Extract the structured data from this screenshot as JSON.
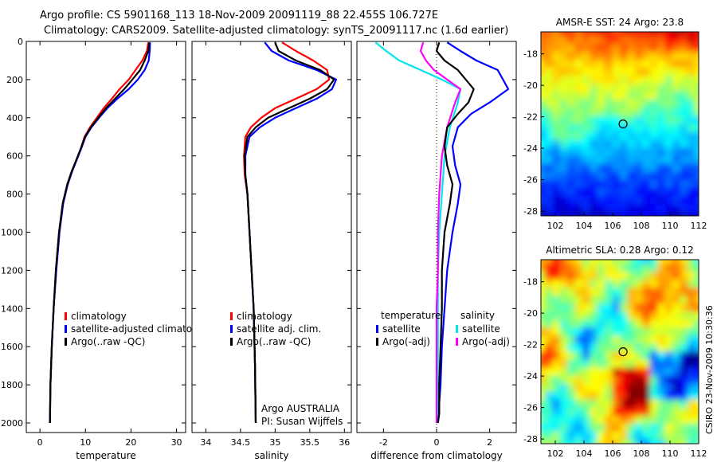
{
  "header": {
    "line1": "Argo profile: CS 5901168_113 18-Nov-2009 20091119_88 22.455S 106.727E",
    "line2": "Climatology: CARS2009. Satellite-adjusted climatology: synTS_20091117.nc (1.6d earlier)"
  },
  "footer": {
    "right_vertical": "CSIRO 23-Nov-2009 10:30:36",
    "argo_credit": "Argo AUSTRALIA",
    "pi_credit": "PI: Susan Wijffels"
  },
  "colors": {
    "climatology": "#ff0000",
    "satellite": "#0000ff",
    "argo": "#000000",
    "sal_satellite": "#00e5ee",
    "sal_argo": "#ff00ff"
  },
  "chart_data": [
    {
      "type": "line",
      "title": "",
      "xlabel": "temperature",
      "ylabel": "",
      "xlim": [
        -3,
        32
      ],
      "ylim": [
        2050,
        0
      ],
      "y_inverted": true,
      "xticks": [
        0,
        10,
        20,
        30
      ],
      "yticks": [
        0,
        200,
        400,
        600,
        800,
        1000,
        1200,
        1400,
        1600,
        1800,
        2000
      ],
      "legend": [
        "climatology",
        "satellite-adjusted climatolo",
        "Argo(..raw -QC)"
      ],
      "legend_position": "lower-middle",
      "series": [
        {
          "name": "climatology",
          "color": "red",
          "x": [
            23.8,
            23.5,
            22.5,
            21.0,
            19.5,
            17.5,
            15.8,
            14.0,
            12.5,
            11.0,
            9.8,
            9.0,
            8.0,
            7.0,
            6.0,
            5.0,
            4.2,
            3.5,
            3.0,
            2.6,
            2.3,
            2.2
          ],
          "y": [
            5,
            50,
            100,
            150,
            200,
            250,
            300,
            350,
            400,
            450,
            500,
            560,
            620,
            680,
            750,
            850,
            1000,
            1200,
            1400,
            1600,
            1800,
            2000
          ]
        },
        {
          "name": "satellite-adjusted climatolo",
          "color": "blue",
          "x": [
            24.2,
            24.1,
            23.9,
            23.0,
            21.5,
            19.5,
            17.0,
            14.8,
            13.0,
            11.3,
            10.0,
            9.1,
            8.1,
            7.1,
            6.1,
            5.1,
            4.3,
            3.6,
            3.0,
            2.6,
            2.3,
            2.2
          ],
          "y": [
            5,
            50,
            100,
            150,
            200,
            250,
            300,
            350,
            400,
            450,
            500,
            560,
            620,
            680,
            750,
            850,
            1000,
            1200,
            1400,
            1600,
            1800,
            2000
          ]
        },
        {
          "name": "Argo(..raw -QC)",
          "color": "black",
          "x": [
            24.0,
            23.8,
            23.0,
            22.0,
            20.3,
            18.5,
            16.5,
            14.5,
            12.8,
            11.2,
            9.9,
            9.0,
            8.0,
            7.0,
            6.0,
            5.0,
            4.2,
            3.5,
            3.0,
            2.6,
            2.3,
            2.2
          ],
          "y": [
            5,
            50,
            100,
            150,
            200,
            250,
            300,
            350,
            400,
            450,
            500,
            560,
            620,
            680,
            750,
            850,
            1000,
            1200,
            1400,
            1600,
            1800,
            2000
          ]
        }
      ]
    },
    {
      "type": "line",
      "title": "",
      "xlabel": "salinity",
      "ylabel": "",
      "xlim": [
        33.8,
        36.1
      ],
      "ylim": [
        2050,
        0
      ],
      "y_inverted": true,
      "xticks": [
        34,
        34.5,
        35,
        35.5,
        36
      ],
      "legend": [
        "climatology",
        "satellite adj. clim.",
        "Argo(..raw -QC)"
      ],
      "legend_position": "lower-middle",
      "series": [
        {
          "name": "climatology",
          "color": "red",
          "x": [
            35.1,
            35.3,
            35.55,
            35.75,
            35.78,
            35.6,
            35.3,
            35.0,
            34.8,
            34.65,
            34.57,
            34.55,
            34.56,
            34.6,
            34.63,
            34.66,
            34.69,
            34.71,
            34.72
          ],
          "y": [
            5,
            50,
            100,
            150,
            200,
            250,
            300,
            350,
            400,
            450,
            500,
            600,
            700,
            800,
            1000,
            1200,
            1400,
            1700,
            2000
          ]
        },
        {
          "name": "satellite adj. clim.",
          "color": "blue",
          "x": [
            34.85,
            34.95,
            35.2,
            35.6,
            35.88,
            35.82,
            35.6,
            35.3,
            35.0,
            34.78,
            34.63,
            34.57,
            34.57,
            34.6,
            34.63,
            34.66,
            34.69,
            34.71,
            34.72
          ],
          "y": [
            5,
            50,
            100,
            150,
            200,
            250,
            300,
            350,
            400,
            450,
            500,
            600,
            700,
            800,
            1000,
            1200,
            1400,
            1700,
            2000
          ]
        },
        {
          "name": "Argo(..raw -QC)",
          "color": "black",
          "x": [
            35.0,
            35.05,
            35.3,
            35.65,
            35.85,
            35.75,
            35.5,
            35.2,
            34.9,
            34.72,
            34.6,
            34.56,
            34.57,
            34.6,
            34.63,
            34.66,
            34.69,
            34.71,
            34.72
          ],
          "y": [
            5,
            50,
            100,
            150,
            200,
            250,
            300,
            350,
            400,
            450,
            500,
            600,
            700,
            800,
            1000,
            1200,
            1400,
            1700,
            2000
          ]
        }
      ]
    },
    {
      "type": "line",
      "title": "",
      "xlabel": "difference from climatology",
      "ylabel": "",
      "xlim": [
        -3,
        3
      ],
      "ylim": [
        2050,
        0
      ],
      "y_inverted": true,
      "xticks": [
        -2,
        0,
        2
      ],
      "legend_groups": [
        {
          "heading": "temperature",
          "items": [
            "satellite",
            "Argo(-adj)"
          ]
        },
        {
          "heading": "salinity",
          "items": [
            "satellite",
            "Argo(-adj)"
          ]
        }
      ],
      "series": [
        {
          "name": "temperature satellite",
          "color": "blue",
          "x": [
            0.4,
            0.9,
            1.5,
            2.3,
            2.7,
            2.0,
            1.3,
            0.8,
            0.6,
            0.7,
            0.9,
            0.8,
            0.6,
            0.4,
            0.3,
            0.2,
            0.15,
            0.1,
            0.1,
            0.05
          ],
          "y": [
            5,
            50,
            100,
            150,
            250,
            320,
            380,
            450,
            550,
            650,
            750,
            850,
            1000,
            1200,
            1400,
            1600,
            1800,
            1900,
            1950,
            2000
          ]
        },
        {
          "name": "temperature Argo(-adj)",
          "color": "black",
          "x": [
            0.1,
            0.0,
            0.3,
            0.8,
            1.4,
            1.2,
            0.8,
            0.4,
            0.3,
            0.4,
            0.6,
            0.5,
            0.3,
            0.2,
            0.2,
            0.15,
            0.1,
            0.1,
            0.1,
            0.05
          ],
          "y": [
            5,
            50,
            100,
            150,
            250,
            320,
            380,
            450,
            550,
            650,
            750,
            850,
            1000,
            1200,
            1400,
            1600,
            1800,
            1900,
            1950,
            2000
          ]
        },
        {
          "name": "salinity satellite",
          "color": "cyan",
          "x": [
            -2.3,
            -1.9,
            -1.4,
            -0.6,
            0.2,
            0.9,
            0.8,
            0.5,
            0.3,
            0.2,
            0.1,
            0.05,
            0.05,
            0.05,
            0.05,
            0.05
          ],
          "y": [
            5,
            50,
            100,
            150,
            200,
            250,
            320,
            450,
            600,
            800,
            1000,
            1200,
            1400,
            1600,
            1800,
            2000
          ]
        },
        {
          "name": "salinity Argo(-adj)",
          "color": "magenta",
          "x": [
            -0.5,
            -0.6,
            -0.4,
            -0.1,
            0.4,
            0.9,
            0.7,
            0.4,
            0.2,
            0.1,
            0.05,
            0.05,
            0.0,
            0.0,
            0.0,
            0.0
          ],
          "y": [
            5,
            50,
            100,
            150,
            200,
            250,
            320,
            450,
            600,
            800,
            1000,
            1200,
            1400,
            1600,
            1800,
            2000
          ]
        }
      ]
    },
    {
      "type": "heatmap",
      "title": "AMSR-E SST: 24 Argo: 23.8",
      "xlim": [
        101,
        112
      ],
      "ylim": [
        -28.3,
        -16.6
      ],
      "xticks": [
        102,
        104,
        106,
        108,
        110,
        112
      ],
      "yticks": [
        -18,
        -20,
        -22,
        -24,
        -26,
        -28
      ],
      "marker": {
        "x": 106.727,
        "y": -22.455
      }
    },
    {
      "type": "heatmap",
      "title": "Altimetric SLA: 0.28 Argo: 0.12",
      "xlim": [
        101,
        112
      ],
      "ylim": [
        -28.3,
        -16.6
      ],
      "xticks": [
        102,
        104,
        106,
        108,
        110,
        112
      ],
      "yticks": [
        -18,
        -20,
        -22,
        -24,
        -26,
        -28
      ],
      "marker": {
        "x": 106.727,
        "y": -22.455
      }
    }
  ]
}
